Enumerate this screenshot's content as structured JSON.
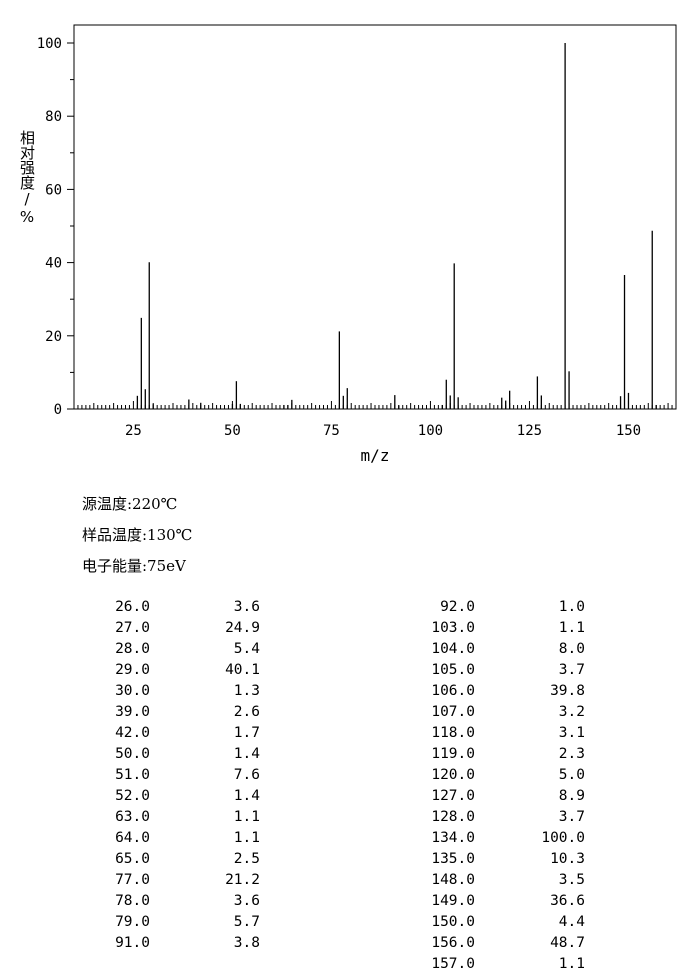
{
  "chart_data": {
    "type": "bar",
    "xlabel": "m/z",
    "ylabel": "相对强度/%",
    "xlim": [
      10,
      162
    ],
    "ylim": [
      0,
      100
    ],
    "x_ticks": [
      25,
      50,
      75,
      100,
      125,
      150
    ],
    "y_ticks": [
      0,
      20,
      40,
      60,
      80,
      100
    ],
    "grid": false,
    "peaks": [
      {
        "mz": "26.0",
        "intensity": "3.6"
      },
      {
        "mz": "27.0",
        "intensity": "24.9"
      },
      {
        "mz": "28.0",
        "intensity": "5.4"
      },
      {
        "mz": "29.0",
        "intensity": "40.1"
      },
      {
        "mz": "30.0",
        "intensity": "1.3"
      },
      {
        "mz": "39.0",
        "intensity": "2.6"
      },
      {
        "mz": "42.0",
        "intensity": "1.7"
      },
      {
        "mz": "50.0",
        "intensity": "1.4"
      },
      {
        "mz": "51.0",
        "intensity": "7.6"
      },
      {
        "mz": "52.0",
        "intensity": "1.4"
      },
      {
        "mz": "63.0",
        "intensity": "1.1"
      },
      {
        "mz": "64.0",
        "intensity": "1.1"
      },
      {
        "mz": "65.0",
        "intensity": "2.5"
      },
      {
        "mz": "77.0",
        "intensity": "21.2"
      },
      {
        "mz": "78.0",
        "intensity": "3.6"
      },
      {
        "mz": "79.0",
        "intensity": "5.7"
      },
      {
        "mz": "91.0",
        "intensity": "3.8"
      },
      {
        "mz": "92.0",
        "intensity": "1.0"
      },
      {
        "mz": "103.0",
        "intensity": "1.1"
      },
      {
        "mz": "104.0",
        "intensity": "8.0"
      },
      {
        "mz": "105.0",
        "intensity": "3.7"
      },
      {
        "mz": "106.0",
        "intensity": "39.8"
      },
      {
        "mz": "107.0",
        "intensity": "3.2"
      },
      {
        "mz": "118.0",
        "intensity": "3.1"
      },
      {
        "mz": "119.0",
        "intensity": "2.3"
      },
      {
        "mz": "120.0",
        "intensity": "5.0"
      },
      {
        "mz": "127.0",
        "intensity": "8.9"
      },
      {
        "mz": "128.0",
        "intensity": "3.7"
      },
      {
        "mz": "134.0",
        "intensity": "100.0"
      },
      {
        "mz": "135.0",
        "intensity": "10.3"
      },
      {
        "mz": "148.0",
        "intensity": "3.5"
      },
      {
        "mz": "149.0",
        "intensity": "36.6"
      },
      {
        "mz": "150.0",
        "intensity": "4.4"
      },
      {
        "mz": "156.0",
        "intensity": "48.7"
      },
      {
        "mz": "157.0",
        "intensity": "1.1"
      }
    ]
  },
  "conditions": {
    "source_temp": "源温度:220℃",
    "sample_temp": "样品温度:130℃",
    "electron_energy": "电子能量:75eV"
  }
}
